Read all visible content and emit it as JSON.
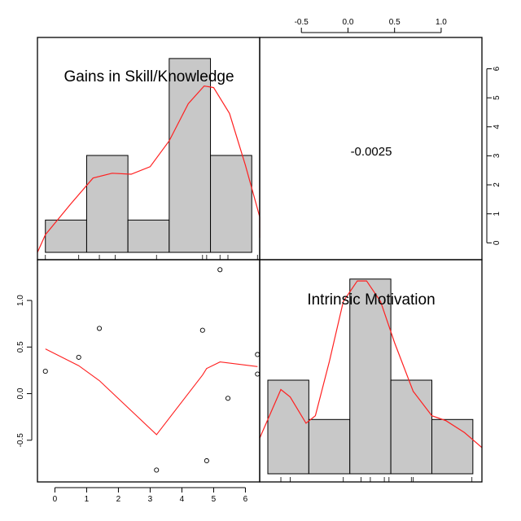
{
  "chart_data": {
    "type": "pairs",
    "variables": [
      "Gains in Skill/Knowledge",
      "Intrinsic Motivation"
    ],
    "correlation": {
      "label": "-0.0025",
      "value": -0.0025
    },
    "colors": {
      "hist_fill": "#c8c8c8",
      "density_line": "#ff2020",
      "smooth_line": "#ff2020",
      "border": "#000000"
    },
    "x_axis": {
      "range": [
        -0.55,
        6.45
      ],
      "ticks": [
        0,
        1,
        2,
        3,
        4,
        5,
        6
      ]
    },
    "y_axis": {
      "range": [
        -0.86,
        1.35
      ],
      "ticks": [
        -0.5,
        0.0,
        0.5,
        1.0
      ],
      "tick_labels": [
        "-0.5",
        "0.0",
        "0.5",
        "1.0"
      ]
    },
    "top_axis": {
      "ticks": [
        -0.5,
        0.0,
        0.5,
        1.0
      ],
      "tick_labels": [
        "-0.5",
        "0.0",
        "0.5",
        "1.0"
      ]
    },
    "right_axis": {
      "range": [
        -0.3,
        6.8
      ],
      "ticks": [
        0,
        1,
        2,
        3,
        4,
        5,
        6
      ],
      "tick_labels": [
        "0",
        "1",
        "2",
        "3",
        "4",
        "5",
        "6"
      ]
    },
    "scatter": {
      "points": [
        {
          "x": -0.3,
          "y": 0.24
        },
        {
          "x": 0.75,
          "y": 0.39
        },
        {
          "x": 1.4,
          "y": 0.7
        },
        {
          "x": 3.2,
          "y": -0.82
        },
        {
          "x": 4.65,
          "y": 0.68
        },
        {
          "x": 4.78,
          "y": -0.72
        },
        {
          "x": 5.2,
          "y": 1.33
        },
        {
          "x": 5.45,
          "y": -0.05
        },
        {
          "x": 6.38,
          "y": 0.42
        },
        {
          "x": 6.38,
          "y": 0.21
        }
      ],
      "smooth": [
        {
          "x": -0.3,
          "y": 0.48
        },
        {
          "x": 0.75,
          "y": 0.3
        },
        {
          "x": 1.4,
          "y": 0.14
        },
        {
          "x": 3.2,
          "y": -0.44
        },
        {
          "x": 4.65,
          "y": 0.2
        },
        {
          "x": 4.78,
          "y": 0.27
        },
        {
          "x": 5.2,
          "y": 0.34
        },
        {
          "x": 6.38,
          "y": 0.29
        }
      ]
    },
    "hist_gains": {
      "breaks": [
        -0.3,
        1.0,
        2.3,
        3.6,
        4.9,
        6.2
      ],
      "counts": [
        1,
        3,
        1,
        6,
        3
      ],
      "count_max": 6.4,
      "rug": [
        -0.3,
        0.75,
        1.4,
        1.9,
        3.2,
        4.65,
        4.78,
        5.2,
        5.45,
        6.38
      ],
      "density": [
        {
          "x": -1.0,
          "y": 0.0
        },
        {
          "x": -0.3,
          "y": 0.55
        },
        {
          "x": 0.5,
          "y": 1.5
        },
        {
          "x": 1.2,
          "y": 2.3
        },
        {
          "x": 1.8,
          "y": 2.45
        },
        {
          "x": 2.4,
          "y": 2.42
        },
        {
          "x": 3.0,
          "y": 2.65
        },
        {
          "x": 3.6,
          "y": 3.45
        },
        {
          "x": 4.2,
          "y": 4.6
        },
        {
          "x": 4.7,
          "y": 5.15
        },
        {
          "x": 5.0,
          "y": 5.1
        },
        {
          "x": 5.5,
          "y": 4.3
        },
        {
          "x": 6.0,
          "y": 2.7
        },
        {
          "x": 6.45,
          "y": 1.1
        },
        {
          "x": 6.8,
          "y": 0.45
        }
      ]
    },
    "hist_motivation": {
      "breaks": [
        -0.86,
        -0.42,
        0.02,
        0.46,
        0.9,
        1.34
      ],
      "counts": [
        2.5,
        1.45,
        5.2,
        2.5,
        1.45
      ],
      "count_max": 5.5,
      "rug": [
        -0.72,
        -0.62,
        -0.05,
        0.14,
        0.24,
        0.39,
        0.44,
        0.68,
        0.7,
        1.33
      ],
      "density": [
        {
          "x": -0.95,
          "y": 0.95
        },
        {
          "x": -0.86,
          "y": 1.45
        },
        {
          "x": -0.72,
          "y": 2.25
        },
        {
          "x": -0.62,
          "y": 2.05
        },
        {
          "x": -0.45,
          "y": 1.35
        },
        {
          "x": -0.35,
          "y": 1.55
        },
        {
          "x": -0.2,
          "y": 3.0
        },
        {
          "x": -0.05,
          "y": 4.6
        },
        {
          "x": 0.1,
          "y": 5.15
        },
        {
          "x": 0.2,
          "y": 5.15
        },
        {
          "x": 0.35,
          "y": 4.6
        },
        {
          "x": 0.5,
          "y": 3.5
        },
        {
          "x": 0.7,
          "y": 2.2
        },
        {
          "x": 0.9,
          "y": 1.55
        },
        {
          "x": 1.05,
          "y": 1.42
        },
        {
          "x": 1.25,
          "y": 1.1
        },
        {
          "x": 1.45,
          "y": 0.7
        }
      ]
    }
  }
}
